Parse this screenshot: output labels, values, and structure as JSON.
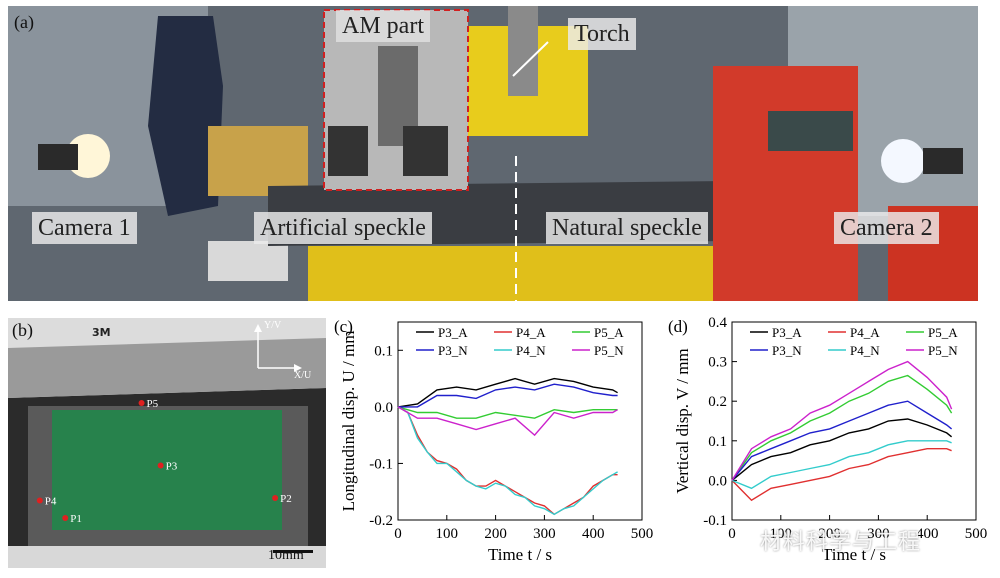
{
  "panel_a": {
    "letter": "(a)",
    "labels": {
      "am_part": "AM part",
      "torch": "Torch",
      "camera1": "Camera 1",
      "artificial": "Artificial speckle",
      "natural": "Natural speckle",
      "camera2": "Camera 2"
    }
  },
  "panel_b": {
    "letter": "(b)",
    "brand": "3M",
    "axis_v": "Y/V",
    "axis_u": "X/U",
    "points": [
      {
        "name": "P5",
        "u": 0.42,
        "v": 0.34
      },
      {
        "name": "P3",
        "u": 0.48,
        "v": 0.59
      },
      {
        "name": "P4",
        "u": 0.1,
        "v": 0.73
      },
      {
        "name": "P1",
        "u": 0.18,
        "v": 0.8
      },
      {
        "name": "P2",
        "u": 0.84,
        "v": 0.72
      }
    ],
    "scale": "10mm"
  },
  "chart_data": [
    {
      "type": "line",
      "panel": "(c)",
      "xlabel": "Time t / s",
      "ylabel": "Longitudinal disp. U / mm",
      "xlim": [
        0,
        500
      ],
      "ylim": [
        -0.2,
        0.15
      ],
      "xticks": [
        0,
        100,
        200,
        300,
        400,
        500
      ],
      "yticks": [
        -0.2,
        -0.1,
        0.0,
        0.1
      ],
      "legend_position": "top",
      "series": [
        {
          "name": "P3_A",
          "color": "#000000",
          "x": [
            0,
            40,
            80,
            120,
            160,
            200,
            240,
            280,
            320,
            360,
            400,
            440,
            450
          ],
          "y": [
            0,
            0.005,
            0.03,
            0.035,
            0.03,
            0.04,
            0.05,
            0.04,
            0.05,
            0.045,
            0.035,
            0.03,
            0.025
          ]
        },
        {
          "name": "P4_A",
          "color": "#e03030",
          "x": [
            0,
            20,
            40,
            60,
            80,
            100,
            120,
            140,
            160,
            180,
            200,
            220,
            240,
            260,
            280,
            300,
            320,
            340,
            360,
            380,
            400,
            420,
            440,
            450
          ],
          "y": [
            0,
            -0.01,
            -0.05,
            -0.08,
            -0.095,
            -0.1,
            -0.11,
            -0.13,
            -0.14,
            -0.14,
            -0.13,
            -0.14,
            -0.15,
            -0.16,
            -0.17,
            -0.175,
            -0.19,
            -0.18,
            -0.17,
            -0.16,
            -0.14,
            -0.13,
            -0.12,
            -0.12
          ]
        },
        {
          "name": "P5_A",
          "color": "#33cc33",
          "x": [
            0,
            40,
            80,
            120,
            160,
            200,
            240,
            280,
            320,
            360,
            400,
            440,
            450
          ],
          "y": [
            0,
            -0.01,
            -0.01,
            -0.02,
            -0.02,
            -0.01,
            -0.015,
            -0.02,
            -0.005,
            -0.01,
            -0.005,
            -0.005,
            -0.005
          ]
        },
        {
          "name": "P3_N",
          "color": "#2020cc",
          "x": [
            0,
            40,
            80,
            120,
            160,
            200,
            240,
            280,
            320,
            360,
            400,
            440,
            450
          ],
          "y": [
            0,
            0.0,
            0.02,
            0.02,
            0.015,
            0.03,
            0.035,
            0.03,
            0.04,
            0.035,
            0.025,
            0.02,
            0.02
          ]
        },
        {
          "name": "P4_N",
          "color": "#33cccc",
          "x": [
            0,
            20,
            40,
            60,
            80,
            100,
            120,
            140,
            160,
            180,
            200,
            220,
            240,
            260,
            280,
            300,
            320,
            340,
            360,
            380,
            400,
            420,
            440,
            450
          ],
          "y": [
            0,
            -0.01,
            -0.055,
            -0.08,
            -0.1,
            -0.1,
            -0.115,
            -0.13,
            -0.14,
            -0.145,
            -0.135,
            -0.14,
            -0.155,
            -0.16,
            -0.175,
            -0.18,
            -0.19,
            -0.18,
            -0.175,
            -0.16,
            -0.145,
            -0.13,
            -0.12,
            -0.115
          ]
        },
        {
          "name": "P5_N",
          "color": "#cc22cc",
          "x": [
            0,
            40,
            80,
            120,
            160,
            200,
            240,
            280,
            320,
            360,
            400,
            440,
            450
          ],
          "y": [
            0,
            -0.02,
            -0.02,
            -0.03,
            -0.04,
            -0.03,
            -0.02,
            -0.05,
            -0.01,
            -0.02,
            -0.01,
            -0.01,
            -0.005
          ]
        }
      ]
    },
    {
      "type": "line",
      "panel": "(d)",
      "xlabel": "Time t / s",
      "ylabel": "Vertical disp. V / mm",
      "xlim": [
        0,
        500
      ],
      "ylim": [
        -0.1,
        0.4
      ],
      "xticks": [
        0,
        100,
        200,
        300,
        400,
        500
      ],
      "yticks": [
        -0.1,
        0.0,
        0.1,
        0.2,
        0.3,
        0.4
      ],
      "legend_position": "top",
      "series": [
        {
          "name": "P3_A",
          "color": "#000000",
          "x": [
            0,
            40,
            80,
            120,
            160,
            200,
            240,
            280,
            320,
            360,
            400,
            440,
            450
          ],
          "y": [
            0,
            0.04,
            0.06,
            0.07,
            0.09,
            0.1,
            0.12,
            0.13,
            0.15,
            0.155,
            0.14,
            0.12,
            0.11
          ]
        },
        {
          "name": "P4_A",
          "color": "#e03030",
          "x": [
            0,
            40,
            80,
            120,
            160,
            200,
            240,
            280,
            320,
            360,
            400,
            440,
            450
          ],
          "y": [
            0,
            -0.05,
            -0.02,
            -0.01,
            0.0,
            0.01,
            0.03,
            0.04,
            0.06,
            0.07,
            0.08,
            0.08,
            0.075
          ]
        },
        {
          "name": "P5_A",
          "color": "#33cc33",
          "x": [
            0,
            40,
            80,
            120,
            160,
            200,
            240,
            280,
            320,
            360,
            400,
            440,
            450
          ],
          "y": [
            0,
            0.07,
            0.1,
            0.12,
            0.15,
            0.17,
            0.2,
            0.22,
            0.25,
            0.265,
            0.23,
            0.19,
            0.17
          ]
        },
        {
          "name": "P3_N",
          "color": "#2020cc",
          "x": [
            0,
            40,
            80,
            120,
            160,
            200,
            240,
            280,
            320,
            360,
            400,
            440,
            450
          ],
          "y": [
            0,
            0.06,
            0.08,
            0.1,
            0.12,
            0.13,
            0.15,
            0.17,
            0.19,
            0.2,
            0.17,
            0.14,
            0.13
          ]
        },
        {
          "name": "P4_N",
          "color": "#33cccc",
          "x": [
            0,
            40,
            80,
            120,
            160,
            200,
            240,
            280,
            320,
            360,
            400,
            440,
            450
          ],
          "y": [
            0,
            -0.02,
            0.01,
            0.02,
            0.03,
            0.04,
            0.06,
            0.07,
            0.09,
            0.1,
            0.1,
            0.1,
            0.095
          ]
        },
        {
          "name": "P5_N",
          "color": "#cc22cc",
          "x": [
            0,
            40,
            80,
            120,
            160,
            200,
            240,
            280,
            320,
            360,
            400,
            440,
            450
          ],
          "y": [
            0,
            0.08,
            0.11,
            0.13,
            0.17,
            0.19,
            0.22,
            0.25,
            0.28,
            0.3,
            0.26,
            0.21,
            0.18
          ]
        }
      ]
    }
  ],
  "watermark": "材料科学与工程"
}
